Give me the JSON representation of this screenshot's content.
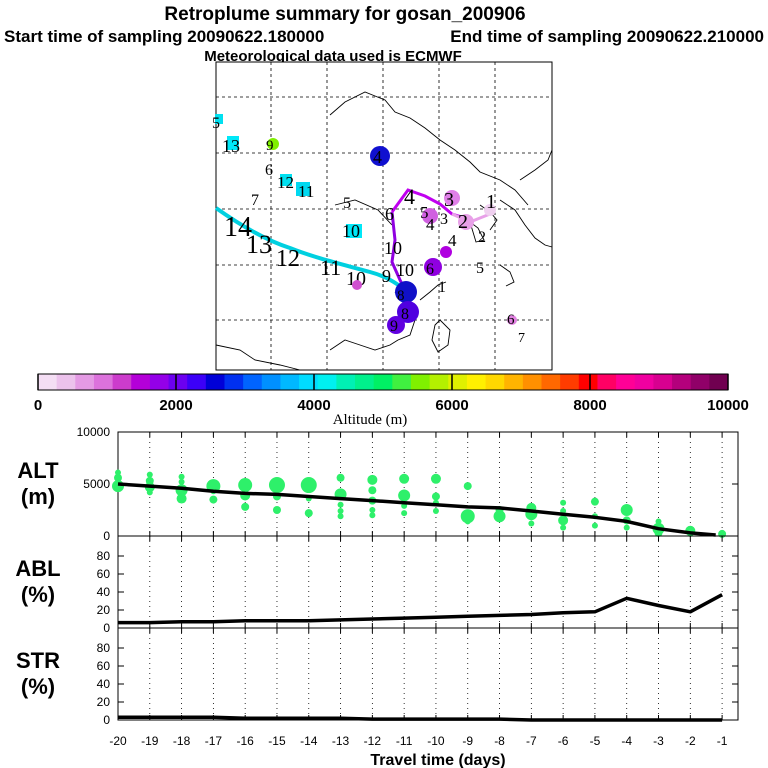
{
  "header": {
    "title": "Retroplume summary for gosan_200906",
    "start_label": "Start time of sampling 20090622.180000",
    "end_label": "End time of sampling 20090622.210000",
    "met_label": "Meteorological data used is ECMWF"
  },
  "colorbar": {
    "ticks": [
      "0",
      "2000",
      "4000",
      "6000",
      "8000",
      "10000"
    ],
    "label": "Altitude (m)",
    "colors": [
      "#f4def4",
      "#ecc2ec",
      "#e49ae4",
      "#dc72dc",
      "#cc3ccc",
      "#b400d8",
      "#9400e8",
      "#6c00f0",
      "#3c00f8",
      "#0000d8",
      "#0030f0",
      "#0064ff",
      "#0090ff",
      "#00b8ff",
      "#00dcff",
      "#00f0f0",
      "#00f0b4",
      "#00f08c",
      "#00f064",
      "#40f040",
      "#80f000",
      "#b4f000",
      "#e0f000",
      "#fff000",
      "#ffd800",
      "#ffb400",
      "#ff9000",
      "#ff6800",
      "#ff3c00",
      "#ff0000",
      "#ff0064",
      "#ff0096",
      "#f000a0",
      "#d80090",
      "#b4007c",
      "#900068",
      "#700050"
    ]
  },
  "map": {
    "cyan_labels": [
      "5",
      "13",
      "9",
      "6",
      "12",
      "11",
      "7",
      "14",
      "13",
      "12",
      "11",
      "10"
    ],
    "dark_labels": [
      "5",
      "10",
      "4",
      "6",
      "4",
      "3",
      "5",
      "4",
      "3",
      "2",
      "1",
      "2",
      "4",
      "6",
      "5",
      "8",
      "8",
      "9",
      "6",
      "7",
      "9",
      "10",
      "10",
      "1"
    ]
  },
  "chart_data": [
    {
      "name": "ALT",
      "type": "scatter+line",
      "ylabel_line1": "ALT",
      "ylabel_line2": "(m)",
      "x": [
        -20,
        -19,
        -18,
        -17,
        -16,
        -15,
        -14,
        -13,
        -12,
        -11,
        -10,
        -9,
        -8,
        -7,
        -6,
        -5,
        -4,
        -3,
        -2,
        -1
      ],
      "ylim": [
        0,
        10000
      ],
      "yticks": [
        "0",
        "5000",
        "10000"
      ],
      "line_x": [
        -20,
        -19,
        -18,
        -17,
        -16,
        -15,
        -14,
        -13,
        -12,
        -11,
        -10,
        -9,
        -8,
        -7,
        -6,
        -5,
        -4,
        -3,
        -2,
        -1.2
      ],
      "line_y": [
        5000,
        4800,
        4600,
        4300,
        4100,
        4000,
        3800,
        3600,
        3400,
        3200,
        3000,
        2800,
        2700,
        2400,
        2100,
        1800,
        1400,
        700,
        300,
        100
      ],
      "points": [
        [
          -20,
          4800,
          6
        ],
        [
          -20,
          5600,
          4
        ],
        [
          -20,
          6100,
          3
        ],
        [
          -19,
          4700,
          5
        ],
        [
          -19,
          5300,
          4
        ],
        [
          -19,
          5900,
          3
        ],
        [
          -19,
          4200,
          3
        ],
        [
          -18,
          4400,
          6
        ],
        [
          -18,
          3600,
          5
        ],
        [
          -18,
          5200,
          3
        ],
        [
          -18,
          5700,
          3
        ],
        [
          -17,
          4800,
          7
        ],
        [
          -17,
          3500,
          4
        ],
        [
          -17,
          4300,
          3
        ],
        [
          -16,
          4900,
          7
        ],
        [
          -16,
          3900,
          5
        ],
        [
          -16,
          2800,
          4
        ],
        [
          -15,
          4900,
          8
        ],
        [
          -15,
          3800,
          4
        ],
        [
          -15,
          2500,
          4
        ],
        [
          -14,
          4900,
          8
        ],
        [
          -14,
          3600,
          3
        ],
        [
          -14,
          2200,
          4
        ],
        [
          -13,
          4000,
          6
        ],
        [
          -13,
          5600,
          4
        ],
        [
          -13,
          3000,
          3
        ],
        [
          -13,
          2400,
          3
        ],
        [
          -13,
          1900,
          3
        ],
        [
          -12,
          5400,
          5
        ],
        [
          -12,
          4400,
          4
        ],
        [
          -12,
          3400,
          4
        ],
        [
          -12,
          2500,
          3
        ],
        [
          -12,
          2000,
          3
        ],
        [
          -11,
          5500,
          5
        ],
        [
          -11,
          3900,
          6
        ],
        [
          -11,
          2900,
          3
        ],
        [
          -11,
          2200,
          3
        ],
        [
          -10,
          5500,
          5
        ],
        [
          -10,
          3800,
          4
        ],
        [
          -10,
          3200,
          3
        ],
        [
          -10,
          2400,
          3
        ],
        [
          -9,
          4800,
          4
        ],
        [
          -9,
          1900,
          7
        ],
        [
          -9,
          1400,
          3
        ],
        [
          -8,
          2500,
          4
        ],
        [
          -8,
          1900,
          6
        ],
        [
          -8,
          1600,
          3
        ],
        [
          -7,
          2700,
          5
        ],
        [
          -7,
          2100,
          6
        ],
        [
          -7,
          1800,
          3
        ],
        [
          -7,
          1200,
          3
        ],
        [
          -6,
          3200,
          3
        ],
        [
          -6,
          2400,
          3
        ],
        [
          -6,
          1500,
          5
        ],
        [
          -6,
          800,
          3
        ],
        [
          -5,
          3300,
          4
        ],
        [
          -5,
          1900,
          3
        ],
        [
          -5,
          1000,
          3
        ],
        [
          -4,
          2500,
          6
        ],
        [
          -4,
          1500,
          4
        ],
        [
          -4,
          800,
          3
        ],
        [
          -3,
          1400,
          3
        ],
        [
          -3,
          700,
          6
        ],
        [
          -3,
          300,
          4
        ],
        [
          -2,
          500,
          5
        ],
        [
          -2,
          200,
          3
        ],
        [
          -1,
          200,
          4
        ]
      ]
    },
    {
      "name": "ABL",
      "type": "line",
      "ylabel_line1": "ABL",
      "ylabel_line2": "(%)",
      "ylim": [
        0,
        100
      ],
      "yticks": [
        "0",
        "20",
        "40",
        "60",
        "80"
      ],
      "x": [
        -20,
        -19,
        -18,
        -17,
        -16,
        -15,
        -14,
        -13,
        -12,
        -11,
        -10,
        -9,
        -8,
        -7,
        -6,
        -5,
        -4,
        -3,
        -2,
        -1
      ],
      "y": [
        6,
        6,
        7,
        7,
        8,
        8,
        8,
        9,
        10,
        11,
        12,
        13,
        14,
        15,
        17,
        18,
        33,
        25,
        18,
        37
      ]
    },
    {
      "name": "STR",
      "type": "line",
      "ylabel_line1": "STR",
      "ylabel_line2": "(%)",
      "ylim": [
        0,
        100
      ],
      "yticks": [
        "0",
        "20",
        "40",
        "60",
        "80"
      ],
      "x": [
        -20,
        -19,
        -18,
        -17,
        -16,
        -15,
        -14,
        -13,
        -12,
        -11,
        -10,
        -9,
        -8,
        -7,
        -6,
        -5,
        -4,
        -3,
        -2,
        -1
      ],
      "y": [
        3,
        3,
        3,
        3,
        2,
        2,
        2,
        2,
        1,
        1,
        1,
        1,
        1,
        0,
        0,
        0,
        0,
        0,
        0,
        0
      ]
    }
  ],
  "xaxis": {
    "ticks": [
      "-20",
      "-19",
      "-18",
      "-17",
      "-16",
      "-15",
      "-14",
      "-13",
      "-12",
      "-11",
      "-10",
      "-9",
      "-8",
      "-7",
      "-6",
      "-5",
      "-4",
      "-3",
      "-2",
      "-1"
    ],
    "label": "Travel time (days)"
  }
}
